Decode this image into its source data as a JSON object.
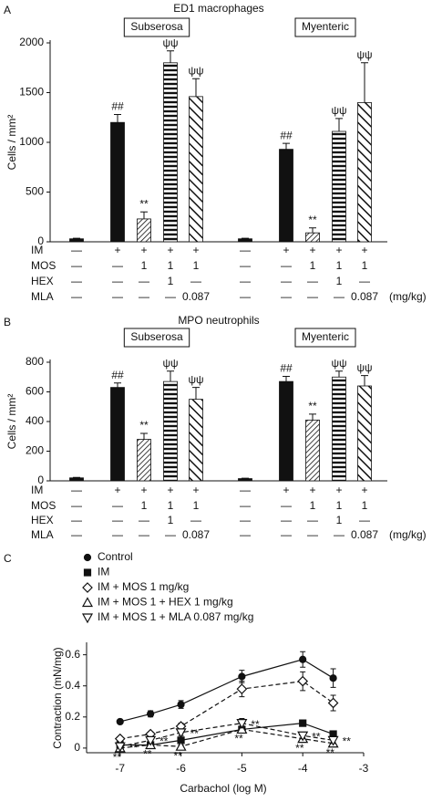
{
  "chart_data": [
    {
      "type": "bar",
      "panel_label": "A",
      "title": "ED1 macrophages",
      "ylabel": "Cells / mm²",
      "ylim": [
        0,
        2000
      ],
      "yticks": [
        0,
        500,
        1000,
        1500,
        2000
      ],
      "fills": [
        "black",
        "black",
        "hatch-fine",
        "stripes",
        "hatch-wide"
      ],
      "groups": [
        {
          "name": "Subserosa",
          "values": [
            30,
            1200,
            230,
            1800,
            1460
          ],
          "errors": [
            5,
            80,
            70,
            120,
            180
          ],
          "annotations": [
            null,
            "##",
            "**",
            "ψψ",
            "ψψ"
          ]
        },
        {
          "name": "Myenteric",
          "values": [
            30,
            930,
            90,
            1110,
            1400
          ],
          "errors": [
            5,
            60,
            50,
            130,
            400
          ],
          "annotations": [
            null,
            "##",
            "**",
            "ψψ",
            "ψψ"
          ]
        }
      ],
      "treatments": [
        {
          "name": "IM",
          "levels": [
            "—",
            "+",
            "+",
            "+",
            "+",
            "—",
            "+",
            "+",
            "+",
            "+"
          ]
        },
        {
          "name": "MOS",
          "levels": [
            "—",
            "—",
            "1",
            "1",
            "1",
            "—",
            "—",
            "1",
            "1",
            "1"
          ]
        },
        {
          "name": "HEX",
          "levels": [
            "—",
            "—",
            "—",
            "1",
            "—",
            "—",
            "—",
            "—",
            "1",
            "—"
          ]
        },
        {
          "name": "MLA",
          "levels": [
            "—",
            "—",
            "—",
            "—",
            "0.087",
            "—",
            "—",
            "—",
            "—",
            "0.087"
          ]
        }
      ],
      "unit": "(mg/kg)"
    },
    {
      "type": "bar",
      "panel_label": "B",
      "title": "MPO neutrophils",
      "ylabel": "Cells / mm²",
      "ylim": [
        0,
        800
      ],
      "yticks": [
        0,
        200,
        400,
        600,
        800
      ],
      "fills": [
        "black",
        "black",
        "hatch-fine",
        "stripes",
        "hatch-wide"
      ],
      "groups": [
        {
          "name": "Subserosa",
          "values": [
            20,
            630,
            280,
            670,
            550
          ],
          "errors": [
            3,
            30,
            40,
            70,
            80
          ],
          "annotations": [
            null,
            "##",
            "**",
            "ψψ",
            "ψψ"
          ]
        },
        {
          "name": "Myenteric",
          "values": [
            15,
            670,
            410,
            700,
            640
          ],
          "errors": [
            3,
            35,
            40,
            40,
            70
          ],
          "annotations": [
            null,
            "##",
            "**",
            "ψψ",
            "ψψ"
          ]
        }
      ],
      "treatments": [
        {
          "name": "IM",
          "levels": [
            "—",
            "+",
            "+",
            "+",
            "+",
            "—",
            "+",
            "+",
            "+",
            "+"
          ]
        },
        {
          "name": "MOS",
          "levels": [
            "—",
            "—",
            "1",
            "1",
            "1",
            "—",
            "—",
            "1",
            "1",
            "1"
          ]
        },
        {
          "name": "HEX",
          "levels": [
            "—",
            "—",
            "—",
            "1",
            "—",
            "—",
            "—",
            "—",
            "1",
            "—"
          ]
        },
        {
          "name": "MLA",
          "levels": [
            "—",
            "—",
            "—",
            "—",
            "0.087",
            "—",
            "—",
            "—",
            "—",
            "0.087"
          ]
        }
      ],
      "unit": "(mg/kg)"
    },
    {
      "type": "line",
      "panel_label": "C",
      "xlabel": "Carbachol  (log M)",
      "ylabel": "Contraction (mN/mg)",
      "x": [
        -7,
        -6.5,
        -6,
        -5,
        -4,
        -3.5
      ],
      "xlim": [
        -7.55,
        -3
      ],
      "xticks": [
        -7,
        -6,
        -5,
        -4,
        -3
      ],
      "ylim": [
        -0.03,
        0.68
      ],
      "yticks": [
        0,
        0.2,
        0.4,
        0.6
      ],
      "series": [
        {
          "name": "Control",
          "marker": "circle-filled",
          "dash": false,
          "values": [
            0.17,
            0.22,
            0.28,
            0.46,
            0.57,
            0.45
          ],
          "errors": [
            0.01,
            0.02,
            0.025,
            0.04,
            0.05,
            0.06
          ]
        },
        {
          "name": "IM",
          "marker": "square-filled",
          "dash": false,
          "values": [
            0.02,
            0.02,
            0.05,
            0.12,
            0.16,
            0.09
          ],
          "errors": [
            0.01,
            0.01,
            0.01,
            0.02,
            0.02,
            0.01
          ]
        },
        {
          "name": "IM + MOS 1 mg/kg",
          "marker": "diamond-open",
          "dash": true,
          "values": [
            0.06,
            0.09,
            0.14,
            0.38,
            0.43,
            0.29
          ],
          "errors": [
            0.01,
            0.015,
            0.02,
            0.05,
            0.06,
            0.05
          ]
        },
        {
          "name": "IM + MOS 1 + HEX 1 mg/kg",
          "marker": "triangle-up-open",
          "dash": true,
          "values": [
            0.0,
            0.02,
            0.01,
            0.12,
            0.06,
            0.03
          ],
          "errors": [
            0.01,
            0.01,
            0.01,
            0.02,
            0.02,
            0.02
          ],
          "annotations": [
            "**",
            "**",
            "**",
            "**",
            "**",
            "**"
          ]
        },
        {
          "name": "IM + MOS 1 + MLA 0.087 mg/kg",
          "marker": "triangle-down-open",
          "dash": true,
          "values": [
            0.01,
            0.05,
            0.1,
            0.16,
            0.08,
            0.05
          ],
          "errors": [
            0.01,
            0.02,
            0.02,
            0.03,
            0.02,
            0.02
          ],
          "annotations": [
            "**",
            "**",
            "**",
            "**",
            "**",
            "**"
          ]
        }
      ]
    }
  ]
}
